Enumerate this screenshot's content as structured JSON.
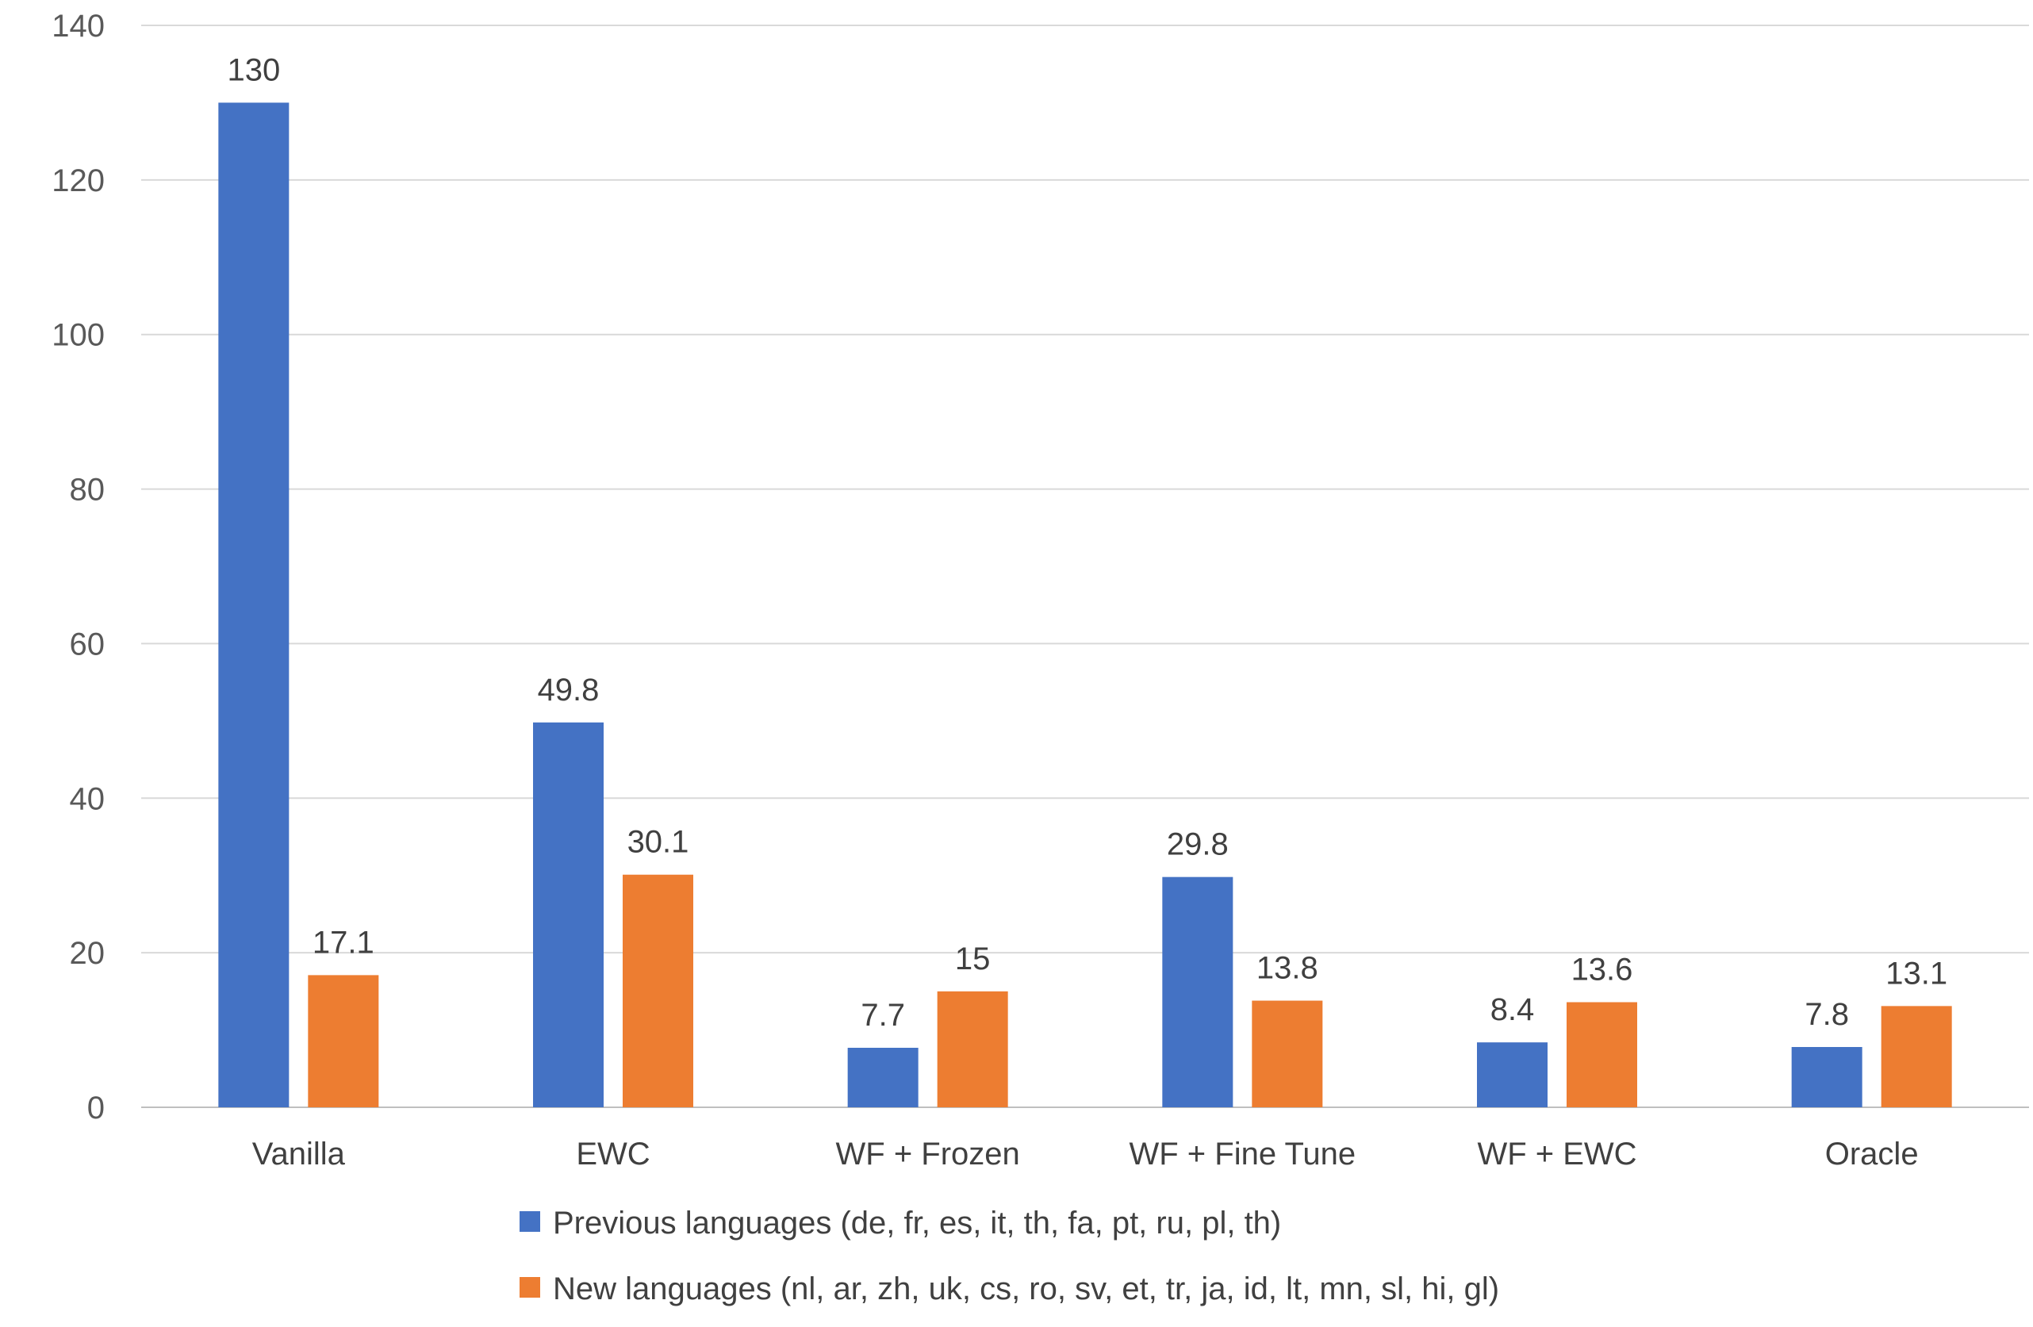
{
  "chart_data": {
    "type": "bar",
    "title": "",
    "xlabel": "",
    "ylabel": "",
    "ylim": [
      0,
      140
    ],
    "yticks": [
      0,
      20,
      40,
      60,
      80,
      100,
      120,
      140
    ],
    "grid": true,
    "legend_position": "bottom",
    "categories": [
      "Vanilla",
      "EWC",
      "WF + Frozen",
      "WF + Fine Tune",
      "WF + EWC",
      "Oracle"
    ],
    "series": [
      {
        "name": "Previous languages (de, fr, es, it, th, fa, pt, ru, pl, th)",
        "color": "#4472C4",
        "values": [
          130,
          49.8,
          7.7,
          29.8,
          8.4,
          7.8
        ],
        "labels": [
          "130",
          "49.8",
          "7.7",
          "29.8",
          "8.4",
          "7.8"
        ]
      },
      {
        "name": "New languages (nl, ar, zh, uk, cs, ro, sv, et, tr, ja, id, lt, mn, sl, hi, gl)",
        "color": "#ED7D31",
        "values": [
          17.1,
          30.1,
          15,
          13.8,
          13.6,
          13.1
        ],
        "labels": [
          "17.1",
          "30.1",
          "15",
          "13.8",
          "13.6",
          "13.1"
        ]
      }
    ]
  }
}
